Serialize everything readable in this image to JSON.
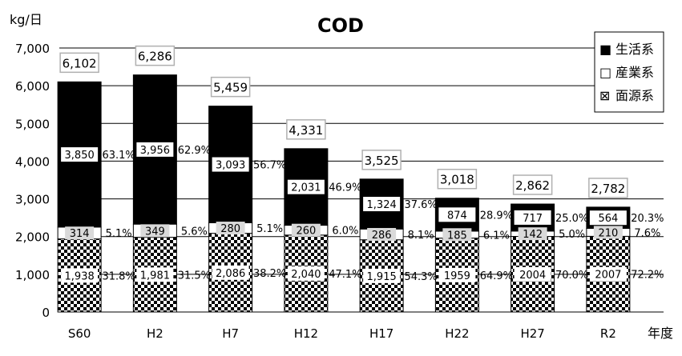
{
  "chart_data": {
    "type": "bar",
    "stacked": true,
    "title": "COD",
    "ylabel": "kg/日",
    "xlabel": "年度",
    "ylim": [
      0,
      7000
    ],
    "yticks": [
      "0",
      "1,000",
      "2,000",
      "3,000",
      "4,000",
      "5,000",
      "6,000",
      "7,000"
    ],
    "ytick_values": [
      0,
      1000,
      2000,
      3000,
      4000,
      5000,
      6000,
      7000
    ],
    "grid": true,
    "legend_position": "top-right",
    "categories": [
      "S60",
      "H2",
      "H7",
      "H12",
      "H17",
      "H22",
      "H27",
      "R2"
    ],
    "totals": [
      "6,102",
      "6,286",
      "5,459",
      "4,331",
      "3,525",
      "3,018",
      "2,862",
      "2,782"
    ],
    "series": [
      {
        "name": "面源系",
        "legend_marker": "⊠",
        "pattern": "checker",
        "values": [
          1938,
          1981,
          2086,
          2040,
          1915,
          1959,
          2004,
          2007
        ],
        "labels": [
          "1,938",
          "1,981",
          "2,086",
          "2,040",
          "1,915",
          "1959",
          "2004",
          "2007"
        ],
        "percents": [
          "31.8%",
          "31.5%",
          "38.2%",
          "47.1%",
          "54.3%",
          "64.9%",
          "70.0%",
          "72.2%"
        ]
      },
      {
        "name": "産業系",
        "legend_marker": "□",
        "pattern": "white",
        "values": [
          314,
          349,
          280,
          260,
          286,
          185,
          142,
          210
        ],
        "labels": [
          "314",
          "349",
          "280",
          "260",
          "286",
          "185",
          "142",
          "210"
        ],
        "percents": [
          "5.1%",
          "5.6%",
          "5.1%",
          "6.0%",
          "8.1%",
          "6.1%",
          "5.0%",
          "7.6%"
        ]
      },
      {
        "name": "生活系",
        "legend_marker": "■",
        "pattern": "black",
        "values": [
          3850,
          3956,
          3093,
          2031,
          1324,
          874,
          717,
          564
        ],
        "labels": [
          "3,850",
          "3,956",
          "3,093",
          "2,031",
          "1,324",
          "874",
          "717",
          "564"
        ],
        "percents": [
          "63.1%",
          "62.9%",
          "56.7%",
          "46.9%",
          "37.6%",
          "28.9%",
          "25.0%",
          "20.3%"
        ]
      }
    ],
    "colors": {
      "black": "#000000",
      "white": "#ffffff",
      "grid": "#000000",
      "total_box_border": "#b0b0b0",
      "industry_label_bg": "#d9d9d9"
    }
  }
}
